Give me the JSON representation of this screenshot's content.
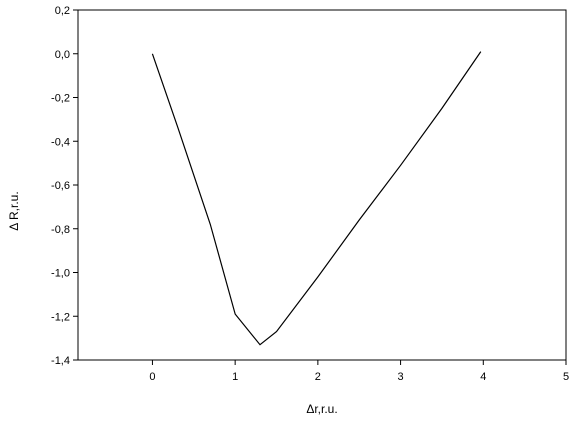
{
  "chart_data": {
    "type": "line",
    "title": "",
    "xlabel": "Δr,r.u.",
    "ylabel": "Δ R,r.u.",
    "xlim": [
      -0.9,
      5
    ],
    "ylim": [
      -1.4,
      0.2
    ],
    "grid": false,
    "legend": "none",
    "x_ticks": [
      0,
      1,
      2,
      3,
      4,
      5
    ],
    "x_tick_labels": [
      "0",
      "1",
      "2",
      "3",
      "4",
      "5"
    ],
    "y_ticks": [
      0.2,
      0.0,
      -0.2,
      -0.4,
      -0.6,
      -0.8,
      -1.0,
      -1.2,
      -1.4
    ],
    "y_tick_labels": [
      "0,2",
      "0,0",
      "-0,2",
      "-0,4",
      "-0,6",
      "-0,8",
      "-1,0",
      "-1,2",
      "-1,4"
    ],
    "series": [
      {
        "x": [
          0,
          0.3,
          0.7,
          1.0,
          1.3,
          1.5,
          2.0,
          2.5,
          3.0,
          3.5,
          3.97
        ],
        "y": [
          0.0,
          -0.33,
          -0.78,
          -1.19,
          -1.33,
          -1.27,
          -1.02,
          -0.76,
          -0.51,
          -0.25,
          0.01
        ],
        "color": "#000000"
      }
    ]
  }
}
